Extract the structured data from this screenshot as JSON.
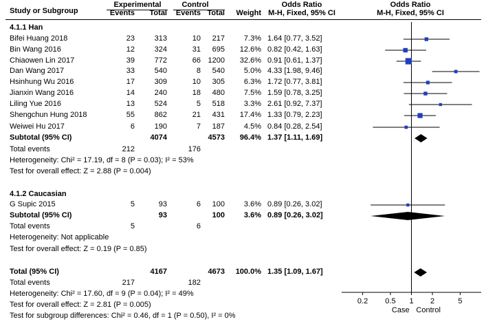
{
  "header": {
    "col_study": "Study or Subgroup",
    "group1_title": "Experimental",
    "group2_title": "Control",
    "events": "Events",
    "total": "Total",
    "weight": "Weight",
    "or_title": "Odds Ratio",
    "or_method": "M-H, Fixed, 95% CI",
    "plot_title": "Odds Ratio",
    "plot_method": "M-H, Fixed, 95% CI"
  },
  "subgroups": [
    {
      "title": "4.1.1 Han",
      "studies": [
        {
          "name": "Bifei Huang 2018",
          "exp_events": "23",
          "exp_total": "313",
          "ctl_events": "10",
          "ctl_total": "217",
          "weight": "7.3%",
          "ci_text": "1.64 [0.77, 3.52]"
        },
        {
          "name": "Bin Wang 2016",
          "exp_events": "12",
          "exp_total": "324",
          "ctl_events": "31",
          "ctl_total": "695",
          "weight": "12.6%",
          "ci_text": "0.82 [0.42, 1.63]"
        },
        {
          "name": "Chiaowen Lin 2017",
          "exp_events": "39",
          "exp_total": "772",
          "ctl_events": "66",
          "ctl_total": "1200",
          "weight": "32.6%",
          "ci_text": "0.91 [0.61, 1.37]"
        },
        {
          "name": "Dan Wang 2017",
          "exp_events": "33",
          "exp_total": "540",
          "ctl_events": "8",
          "ctl_total": "540",
          "weight": "5.0%",
          "ci_text": "4.33 [1.98, 9.46]"
        },
        {
          "name": "Hsinhung Wu 2016",
          "exp_events": "17",
          "exp_total": "309",
          "ctl_events": "10",
          "ctl_total": "305",
          "weight": "6.3%",
          "ci_text": "1.72 [0.77, 3.81]"
        },
        {
          "name": "Jianxin Wang 2016",
          "exp_events": "14",
          "exp_total": "240",
          "ctl_events": "18",
          "ctl_total": "480",
          "weight": "7.5%",
          "ci_text": "1.59 [0.78, 3.25]"
        },
        {
          "name": "Liling Yue 2016",
          "exp_events": "13",
          "exp_total": "524",
          "ctl_events": "5",
          "ctl_total": "518",
          "weight": "3.3%",
          "ci_text": "2.61 [0.92, 7.37]"
        },
        {
          "name": "Shengchun Hung 2018",
          "exp_events": "55",
          "exp_total": "862",
          "ctl_events": "21",
          "ctl_total": "431",
          "weight": "17.4%",
          "ci_text": "1.33 [0.79, 2.23]"
        },
        {
          "name": "Weiwei Hu 2017",
          "exp_events": "6",
          "exp_total": "190",
          "ctl_events": "7",
          "ctl_total": "187",
          "weight": "4.5%",
          "ci_text": "0.84 [0.28, 2.54]"
        }
      ],
      "subtotal": {
        "label": "Subtotal (95% CI)",
        "exp_total": "4074",
        "ctl_total": "4573",
        "weight": "96.4%",
        "ci_text": "1.37 [1.11, 1.69]"
      },
      "total_events_label": "Total events",
      "total_events_exp": "212",
      "total_events_ctl": "176",
      "heterogeneity": "Heterogeneity: Chi² = 17.19, df = 8 (P = 0.03); I² = 53%",
      "overall_effect": "Test for overall effect: Z = 2.88 (P = 0.004)"
    },
    {
      "title": "4.1.2 Caucasian",
      "studies": [
        {
          "name": "G Supic 2015",
          "exp_events": "5",
          "exp_total": "93",
          "ctl_events": "6",
          "ctl_total": "100",
          "weight": "3.6%",
          "ci_text": "0.89 [0.26, 3.02]"
        }
      ],
      "subtotal": {
        "label": "Subtotal (95% CI)",
        "exp_total": "93",
        "ctl_total": "100",
        "weight": "3.6%",
        "ci_text": "0.89 [0.26, 3.02]"
      },
      "total_events_label": "Total events",
      "total_events_exp": "5",
      "total_events_ctl": "6",
      "heterogeneity": "Heterogeneity: Not applicable",
      "overall_effect": "Test for overall effect: Z = 0.19 (P = 0.85)"
    }
  ],
  "total": {
    "label": "Total (95% CI)",
    "exp_total": "4167",
    "ctl_total": "4673",
    "weight": "100.0%",
    "ci_text": "1.35 [1.09, 1.67]",
    "total_events_label": "Total events",
    "total_events_exp": "217",
    "total_events_ctl": "182",
    "heterogeneity": "Heterogeneity: Chi² = 17.60, df = 9 (P = 0.04); I² = 49%",
    "overall_effect": "Test for overall effect: Z = 2.81 (P = 0.005)",
    "subgroup_diff": "Test for subgroup differences: Chi² = 0.46, df = 1 (P = 0.50), I² = 0%"
  },
  "chart_data": {
    "type": "forest",
    "scale": "log",
    "xlim": [
      0.1,
      10
    ],
    "ticks": [
      "0.2",
      "0.5",
      "1",
      "2",
      "5"
    ],
    "tick_values": [
      0.2,
      0.5,
      1,
      2,
      5
    ],
    "null_line": 1,
    "xlabel_left": "Case",
    "xlabel_right": "Control",
    "studies": [
      {
        "name": "Bifei Huang 2018",
        "or": 1.64,
        "lo": 0.77,
        "hi": 3.52,
        "weight": 7.3
      },
      {
        "name": "Bin Wang 2016",
        "or": 0.82,
        "lo": 0.42,
        "hi": 1.63,
        "weight": 12.6
      },
      {
        "name": "Chiaowen Lin 2017",
        "or": 0.91,
        "lo": 0.61,
        "hi": 1.37,
        "weight": 32.6
      },
      {
        "name": "Dan Wang 2017",
        "or": 4.33,
        "lo": 1.98,
        "hi": 9.46,
        "weight": 5.0
      },
      {
        "name": "Hsinhung Wu 2016",
        "or": 1.72,
        "lo": 0.77,
        "hi": 3.81,
        "weight": 6.3
      },
      {
        "name": "Jianxin Wang 2016",
        "or": 1.59,
        "lo": 0.78,
        "hi": 3.25,
        "weight": 7.5
      },
      {
        "name": "Liling Yue 2016",
        "or": 2.61,
        "lo": 0.92,
        "hi": 7.37,
        "weight": 3.3
      },
      {
        "name": "Shengchun Hung 2018",
        "or": 1.33,
        "lo": 0.79,
        "hi": 2.23,
        "weight": 17.4
      },
      {
        "name": "Weiwei Hu 2017",
        "or": 0.84,
        "lo": 0.28,
        "hi": 2.54,
        "weight": 4.5
      },
      {
        "name": "G Supic 2015",
        "or": 0.89,
        "lo": 0.26,
        "hi": 3.02,
        "weight": 3.6
      }
    ],
    "summaries": [
      {
        "name": "Subtotal Han",
        "or": 1.37,
        "lo": 1.11,
        "hi": 1.69
      },
      {
        "name": "Subtotal Caucasian",
        "or": 0.89,
        "lo": 0.26,
        "hi": 3.02
      },
      {
        "name": "Total",
        "or": 1.35,
        "lo": 1.09,
        "hi": 1.67
      }
    ],
    "colors": {
      "study_marker": "#1f3fbf",
      "line": "#000000",
      "diamond": "#000000"
    }
  }
}
